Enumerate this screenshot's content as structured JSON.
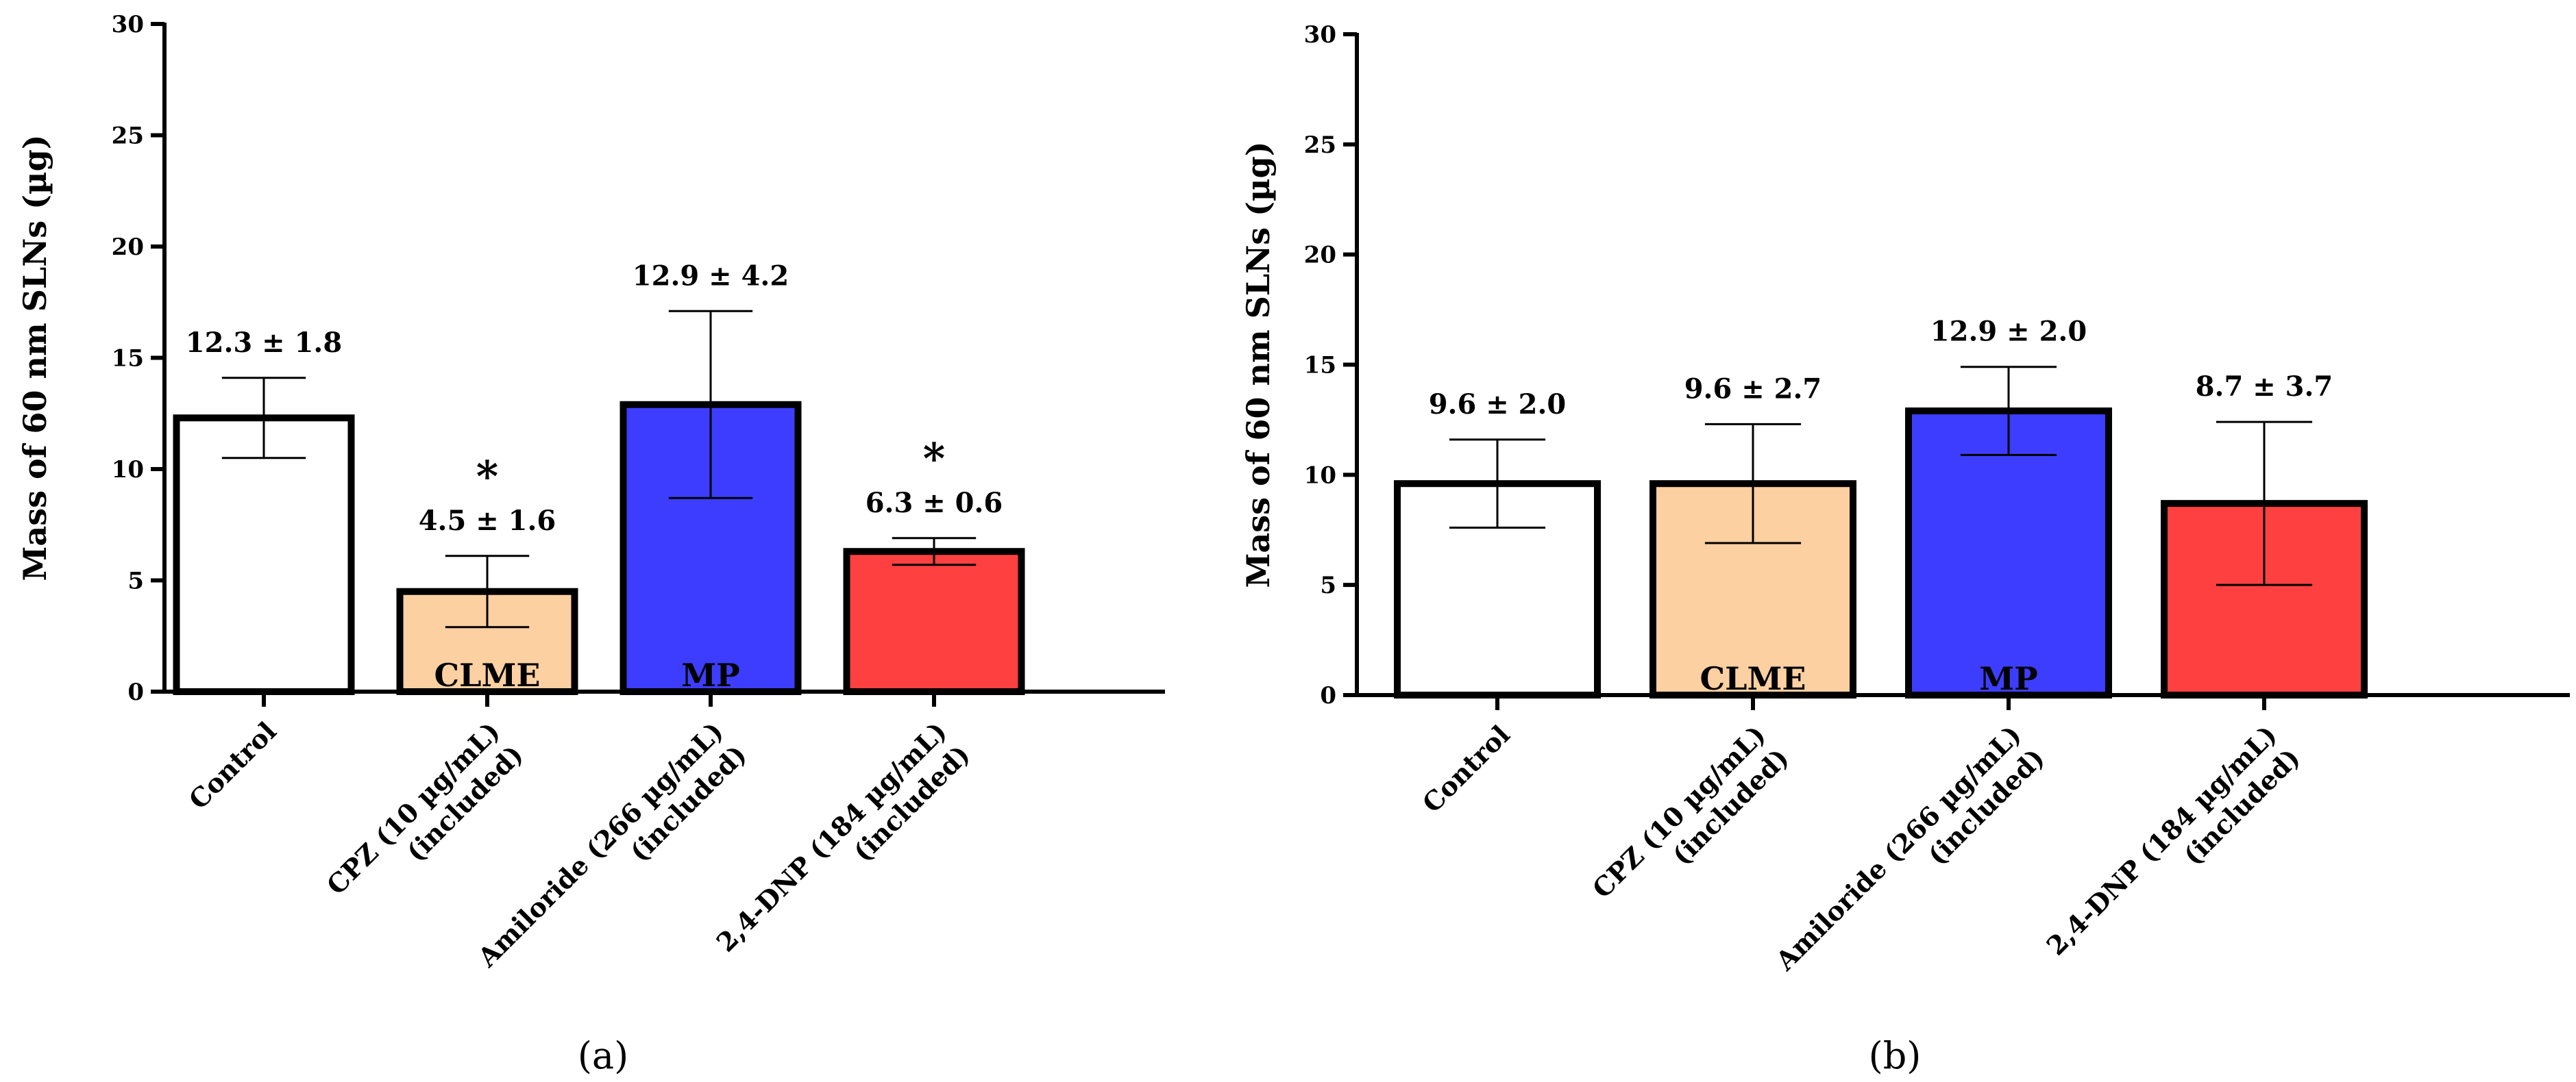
{
  "chart_data": [
    {
      "type": "bar",
      "panel_label": "(a)",
      "ylabel": "Mass of 60 nm SLNs (µg)",
      "ylim": [
        0,
        30
      ],
      "yticks": [
        "0",
        "5",
        "10",
        "15",
        "20",
        "25",
        "30"
      ],
      "categories": [
        [
          "Control"
        ],
        [
          "CPZ (10 µg/mL)",
          "(included)"
        ],
        [
          "Amiloride (266 µg/mL)",
          "(included)"
        ],
        [
          "2,4-DNP (184 µg/mL)",
          "(included)"
        ]
      ],
      "values": [
        12.3,
        4.5,
        12.9,
        6.3
      ],
      "errors": [
        1.8,
        1.6,
        4.2,
        0.6
      ],
      "value_labels": [
        "12.3 ± 1.8",
        "4.5 ± 1.6",
        "12.9 ± 4.2",
        "6.3 ± 0.6"
      ],
      "significance": [
        "",
        "*",
        "",
        "*"
      ],
      "bar_inner_labels": [
        "",
        "CLME",
        "MP",
        ""
      ],
      "colors": [
        "#ffffff",
        "#fdd0a2",
        "#3d3dff",
        "#ff4040"
      ]
    },
    {
      "type": "bar",
      "panel_label": "(b)",
      "ylabel": "Mass of 60 nm SLNs (µg)",
      "ylim": [
        0,
        30
      ],
      "yticks": [
        "0",
        "5",
        "10",
        "15",
        "20",
        "25",
        "30"
      ],
      "categories": [
        [
          "Control"
        ],
        [
          "CPZ (10 µg/mL)",
          "(included)"
        ],
        [
          "Amiloride (266 µg/mL)",
          "(included)"
        ],
        [
          "2,4-DNP (184 µg/mL)",
          "(included)"
        ]
      ],
      "values": [
        9.6,
        9.6,
        12.9,
        8.7
      ],
      "errors": [
        2.0,
        2.7,
        2.0,
        3.7
      ],
      "value_labels": [
        "9.6 ± 2.0",
        "9.6 ± 2.7",
        "12.9 ± 2.0",
        "8.7 ± 3.7"
      ],
      "significance": [
        "",
        "",
        "",
        ""
      ],
      "bar_inner_labels": [
        "",
        "CLME",
        "MP",
        ""
      ],
      "colors": [
        "#ffffff",
        "#fdd0a2",
        "#3d3dff",
        "#ff4040"
      ]
    }
  ]
}
